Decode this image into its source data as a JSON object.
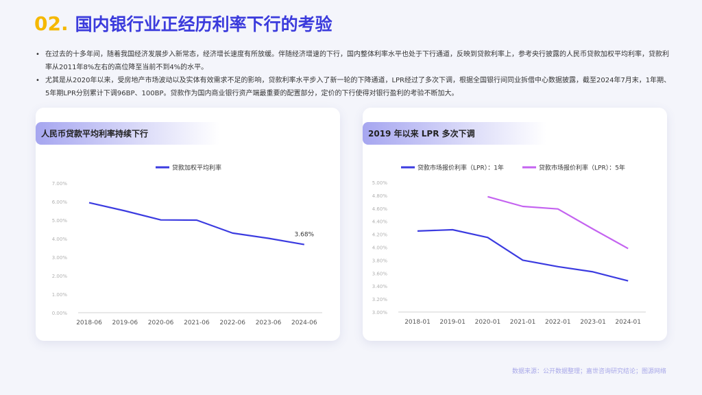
{
  "title": {
    "number": "02.",
    "text": "国内银行业正经历利率下行的考验"
  },
  "bullets": [
    "在过去的十多年间，随着我国经济发展步入新常态，经济增长速度有所放缓。伴随经济增速的下行，国内整体利率水平也处于下行通道，反映到贷款利率上，参考央行披露的人民币贷款加权平均利率，贷款利率从2011年8%左右的高位降至当前不到4%的水平。",
    "尤其是从2020年以来，受房地产市场波动以及实体有效需求不足的影响，贷款利率水平步入了新一轮的下降通道，LPR经过了多次下调，根据全国银行间同业拆借中心数据披露，截至2024年7月末，1年期、5年期LPR分别累计下调96BP、100BP。贷款作为国内商业银行资产端最重要的配置部分，定价的下行使得对银行盈利的考验不断加大。"
  ],
  "source": "数据来源：公开数据整理；嘉世咨询研究结论；图源网络",
  "colors": {
    "series1": "#3b3be0",
    "series2": "#c463f0",
    "title": "#3b3bdc",
    "accent": "#f5b800"
  },
  "chart_data": [
    {
      "type": "line",
      "title": "人民币贷款平均利率持续下行",
      "categories": [
        "2018-06",
        "2019-06",
        "2020-06",
        "2021-06",
        "2022-06",
        "2023-06",
        "2024-06"
      ],
      "series": [
        {
          "name": "贷款加权平均利率",
          "values": [
            5.94,
            5.5,
            5.01,
            5.0,
            4.3,
            4.02,
            3.68
          ]
        }
      ],
      "ylim": [
        0,
        7
      ],
      "yticks": [
        "0.00%",
        "1.00%",
        "2.00%",
        "3.00%",
        "4.00%",
        "5.00%",
        "6.00%",
        "7.00%"
      ],
      "annotations": [
        {
          "label": "3.68%"
        }
      ],
      "legend": "top-center",
      "grid": false
    },
    {
      "type": "line",
      "title": "2019 年以来 LPR 多次下调",
      "categories": [
        "2018-01",
        "2019-01",
        "2020-01",
        "2021-01",
        "2022-01",
        "2023-01",
        "2024-01"
      ],
      "series": [
        {
          "name": "贷款市场报价利率（LPR）：1年",
          "values": [
            4.25,
            4.27,
            4.15,
            3.8,
            3.7,
            3.62,
            3.48
          ]
        },
        {
          "name": "贷款市场报价利率（LPR）：5年",
          "values": [
            null,
            null,
            4.78,
            4.63,
            4.59,
            4.28,
            3.98
          ]
        }
      ],
      "ylim": [
        3.0,
        5.0
      ],
      "yticks": [
        "3.00%",
        "3.20%",
        "3.40%",
        "3.60%",
        "3.80%",
        "4.00%",
        "4.20%",
        "4.40%",
        "4.60%",
        "4.80%",
        "5.00%"
      ],
      "legend": "top-center",
      "grid": false
    }
  ]
}
